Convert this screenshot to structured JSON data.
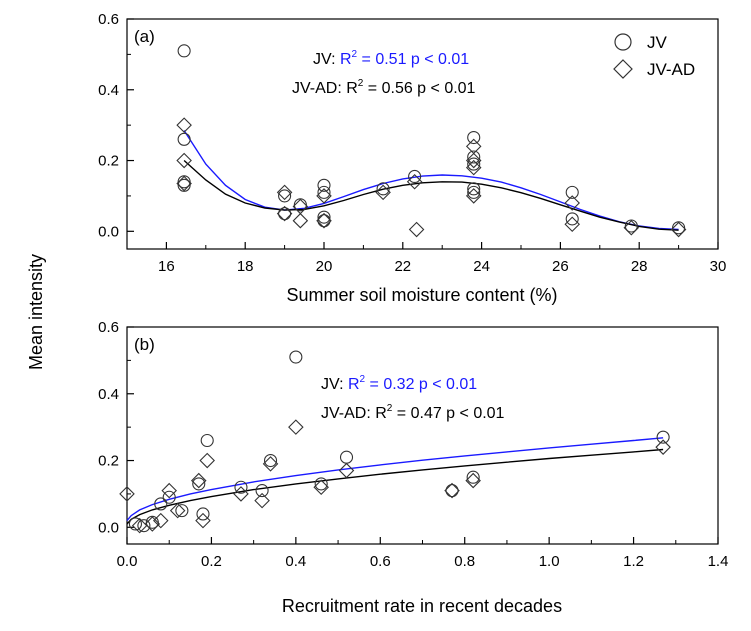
{
  "shared_ylabel": "Mean intensity",
  "colors": {
    "jv": "#1a1aff",
    "jvad": "#000000",
    "markers": "#333333"
  },
  "legend": [
    {
      "marker": "circle",
      "label": "JV"
    },
    {
      "marker": "diamond",
      "label": "JV-AD"
    }
  ],
  "chart_data": [
    {
      "type": "scatter",
      "panel": "(a)",
      "xlabel": "Summer soil moisture content (%)",
      "xlim": [
        15,
        30
      ],
      "ylim": [
        -0.05,
        0.6
      ],
      "xticks": [
        "16",
        "18",
        "20",
        "22",
        "24",
        "26",
        "28",
        "30"
      ],
      "yticks": [
        "0.0",
        "0.2",
        "0.4",
        "0.6"
      ],
      "stats": {
        "jv": {
          "prefix": "JV: ",
          "r2": "R",
          "sup": "2",
          "rest": " = 0.51  p < 0.01"
        },
        "jvad": {
          "prefix": "JV-AD: ",
          "r2": "R",
          "sup": "2",
          "rest": " = 0.56  p < 0.01"
        }
      },
      "series": [
        {
          "name": "JV",
          "marker": "circle",
          "points": [
            [
              16.45,
              0.51
            ],
            [
              16.45,
              0.26
            ],
            [
              16.45,
              0.14
            ],
            [
              16.45,
              0.13
            ],
            [
              19.0,
              0.1
            ],
            [
              19.0,
              0.05
            ],
            [
              19.4,
              0.075
            ],
            [
              20.0,
              0.13
            ],
            [
              20.0,
              0.11
            ],
            [
              20.0,
              0.04
            ],
            [
              20.0,
              0.03
            ],
            [
              21.5,
              0.12
            ],
            [
              22.3,
              0.155
            ],
            [
              23.8,
              0.265
            ],
            [
              23.8,
              0.21
            ],
            [
              23.8,
              0.19
            ],
            [
              23.8,
              0.12
            ],
            [
              23.8,
              0.11
            ],
            [
              26.3,
              0.11
            ],
            [
              26.3,
              0.035
            ],
            [
              27.8,
              0.015
            ],
            [
              29.0,
              0.01
            ]
          ]
        },
        {
          "name": "JV-AD",
          "marker": "diamond",
          "points": [
            [
              16.45,
              0.3
            ],
            [
              16.45,
              0.2
            ],
            [
              16.45,
              0.135
            ],
            [
              19.0,
              0.11
            ],
            [
              19.0,
              0.05
            ],
            [
              19.4,
              0.07
            ],
            [
              19.4,
              0.03
            ],
            [
              20.0,
              0.1
            ],
            [
              20.0,
              0.03
            ],
            [
              21.5,
              0.11
            ],
            [
              22.3,
              0.14
            ],
            [
              22.35,
              0.005
            ],
            [
              23.8,
              0.24
            ],
            [
              23.8,
              0.2
            ],
            [
              23.8,
              0.18
            ],
            [
              23.8,
              0.1
            ],
            [
              26.3,
              0.08
            ],
            [
              26.3,
              0.02
            ],
            [
              27.8,
              0.01
            ],
            [
              29.0,
              0.005
            ]
          ]
        }
      ],
      "fits": [
        {
          "name": "JV",
          "color": "#1a1aff",
          "x": [
            16.45,
            17.0,
            17.5,
            18.0,
            18.5,
            19.0,
            19.5,
            20.0,
            20.5,
            21.0,
            21.5,
            22.0,
            22.5,
            23.0,
            23.5,
            24.0,
            24.5,
            25.0,
            25.5,
            26.0,
            26.5,
            27.0,
            27.5,
            28.0,
            28.5,
            29.0
          ],
          "y": [
            0.285,
            0.19,
            0.13,
            0.09,
            0.068,
            0.06,
            0.065,
            0.079,
            0.098,
            0.118,
            0.135,
            0.148,
            0.156,
            0.159,
            0.157,
            0.15,
            0.139,
            0.123,
            0.104,
            0.083,
            0.062,
            0.043,
            0.027,
            0.015,
            0.008,
            0.005
          ]
        },
        {
          "name": "JV-AD",
          "color": "#000000",
          "x": [
            16.45,
            17.0,
            17.5,
            18.0,
            18.5,
            19.0,
            19.5,
            20.0,
            20.5,
            21.0,
            21.5,
            22.0,
            22.5,
            23.0,
            23.5,
            24.0,
            24.5,
            25.0,
            25.5,
            26.0,
            26.5,
            27.0,
            27.5,
            28.0,
            28.5,
            29.0
          ],
          "y": [
            0.2,
            0.145,
            0.105,
            0.08,
            0.066,
            0.06,
            0.062,
            0.072,
            0.087,
            0.104,
            0.119,
            0.13,
            0.137,
            0.14,
            0.139,
            0.133,
            0.123,
            0.109,
            0.093,
            0.075,
            0.057,
            0.04,
            0.026,
            0.014,
            0.006,
            0.003
          ]
        }
      ]
    },
    {
      "type": "scatter",
      "panel": "(b)",
      "xlabel": "Recruitment rate in recent decades",
      "xlim": [
        0.0,
        1.4
      ],
      "ylim": [
        -0.05,
        0.6
      ],
      "xticks": [
        "0.0",
        "0.2",
        "0.4",
        "0.6",
        "0.8",
        "1.0",
        "1.2",
        "1.4"
      ],
      "yticks": [
        "0.0",
        "0.2",
        "0.4",
        "0.6"
      ],
      "stats": {
        "jv": {
          "prefix": "JV: ",
          "r2": "R",
          "sup": "2",
          "rest": " = 0.32  p < 0.01"
        },
        "jvad": {
          "prefix": "JV-AD: ",
          "r2": "R",
          "sup": "2",
          "rest": " = 0.47  p < 0.01"
        }
      },
      "series": [
        {
          "name": "JV",
          "marker": "circle",
          "points": [
            [
              0.02,
              0.01
            ],
            [
              0.04,
              0.005
            ],
            [
              0.06,
              0.015
            ],
            [
              0.08,
              0.07
            ],
            [
              0.1,
              0.09
            ],
            [
              0.13,
              0.05
            ],
            [
              0.17,
              0.13
            ],
            [
              0.18,
              0.04
            ],
            [
              0.19,
              0.26
            ],
            [
              0.27,
              0.12
            ],
            [
              0.32,
              0.11
            ],
            [
              0.34,
              0.2
            ],
            [
              0.4,
              0.51
            ],
            [
              0.46,
              0.13
            ],
            [
              0.52,
              0.21
            ],
            [
              0.77,
              0.11
            ],
            [
              0.82,
              0.15
            ],
            [
              1.27,
              0.27
            ]
          ]
        },
        {
          "name": "JV-AD",
          "marker": "diamond",
          "points": [
            [
              0.0,
              0.1
            ],
            [
              0.03,
              0.005
            ],
            [
              0.06,
              0.01
            ],
            [
              0.08,
              0.02
            ],
            [
              0.1,
              0.11
            ],
            [
              0.12,
              0.05
            ],
            [
              0.17,
              0.14
            ],
            [
              0.18,
              0.02
            ],
            [
              0.19,
              0.2
            ],
            [
              0.27,
              0.1
            ],
            [
              0.32,
              0.08
            ],
            [
              0.34,
              0.19
            ],
            [
              0.4,
              0.3
            ],
            [
              0.46,
              0.12
            ],
            [
              0.52,
              0.17
            ],
            [
              0.77,
              0.11
            ],
            [
              0.82,
              0.14
            ],
            [
              1.27,
              0.24
            ]
          ]
        }
      ],
      "fits": [
        {
          "name": "JV",
          "color": "#1a1aff",
          "x": [
            0.0,
            0.01,
            0.03,
            0.06,
            0.1,
            0.15,
            0.2,
            0.3,
            0.4,
            0.5,
            0.6,
            0.7,
            0.8,
            0.9,
            1.0,
            1.1,
            1.2,
            1.27
          ],
          "y": [
            0.02,
            0.035,
            0.052,
            0.068,
            0.084,
            0.1,
            0.113,
            0.136,
            0.155,
            0.172,
            0.187,
            0.201,
            0.214,
            0.226,
            0.238,
            0.249,
            0.26,
            0.268
          ]
        },
        {
          "name": "JV-AD",
          "color": "#000000",
          "x": [
            0.0,
            0.01,
            0.03,
            0.06,
            0.1,
            0.15,
            0.2,
            0.3,
            0.4,
            0.5,
            0.6,
            0.7,
            0.8,
            0.9,
            1.0,
            1.1,
            1.2,
            1.27
          ],
          "y": [
            0.01,
            0.024,
            0.038,
            0.052,
            0.066,
            0.08,
            0.092,
            0.113,
            0.13,
            0.145,
            0.159,
            0.172,
            0.184,
            0.195,
            0.206,
            0.216,
            0.226,
            0.233
          ]
        }
      ]
    }
  ]
}
